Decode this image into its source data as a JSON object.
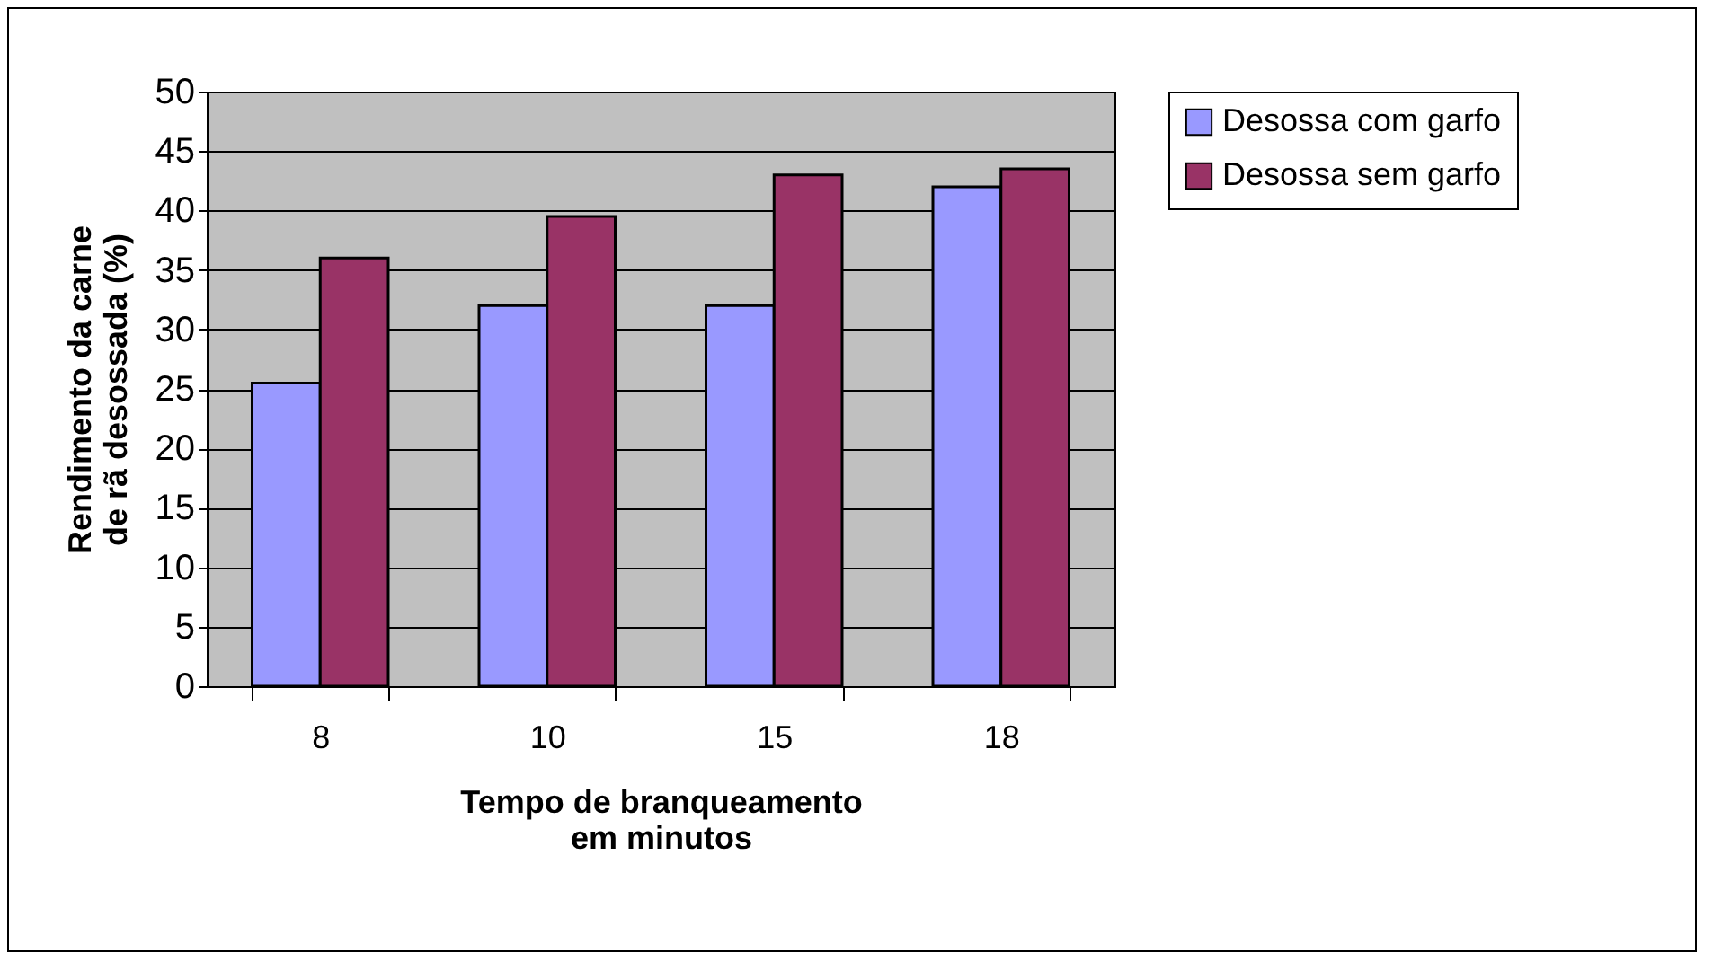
{
  "chart_data": {
    "type": "bar",
    "xlabel": "Tempo de branqueamento em minutos",
    "ylabel": "Rendimento da carne de rã desossada (%)",
    "categories": [
      "8",
      "10",
      "15",
      "18"
    ],
    "series": [
      {
        "name": "Desossa com garfo",
        "color": "#9999ff",
        "values": [
          25.5,
          32,
          32,
          42
        ]
      },
      {
        "name": "Desossa sem garfo",
        "color": "#993366",
        "values": [
          36,
          39.5,
          43,
          43.5
        ]
      }
    ],
    "ylim": [
      0,
      50
    ],
    "yticks": [
      0,
      5,
      10,
      15,
      20,
      25,
      30,
      35,
      40,
      45,
      50
    ],
    "grid": "y",
    "legend": "right"
  }
}
